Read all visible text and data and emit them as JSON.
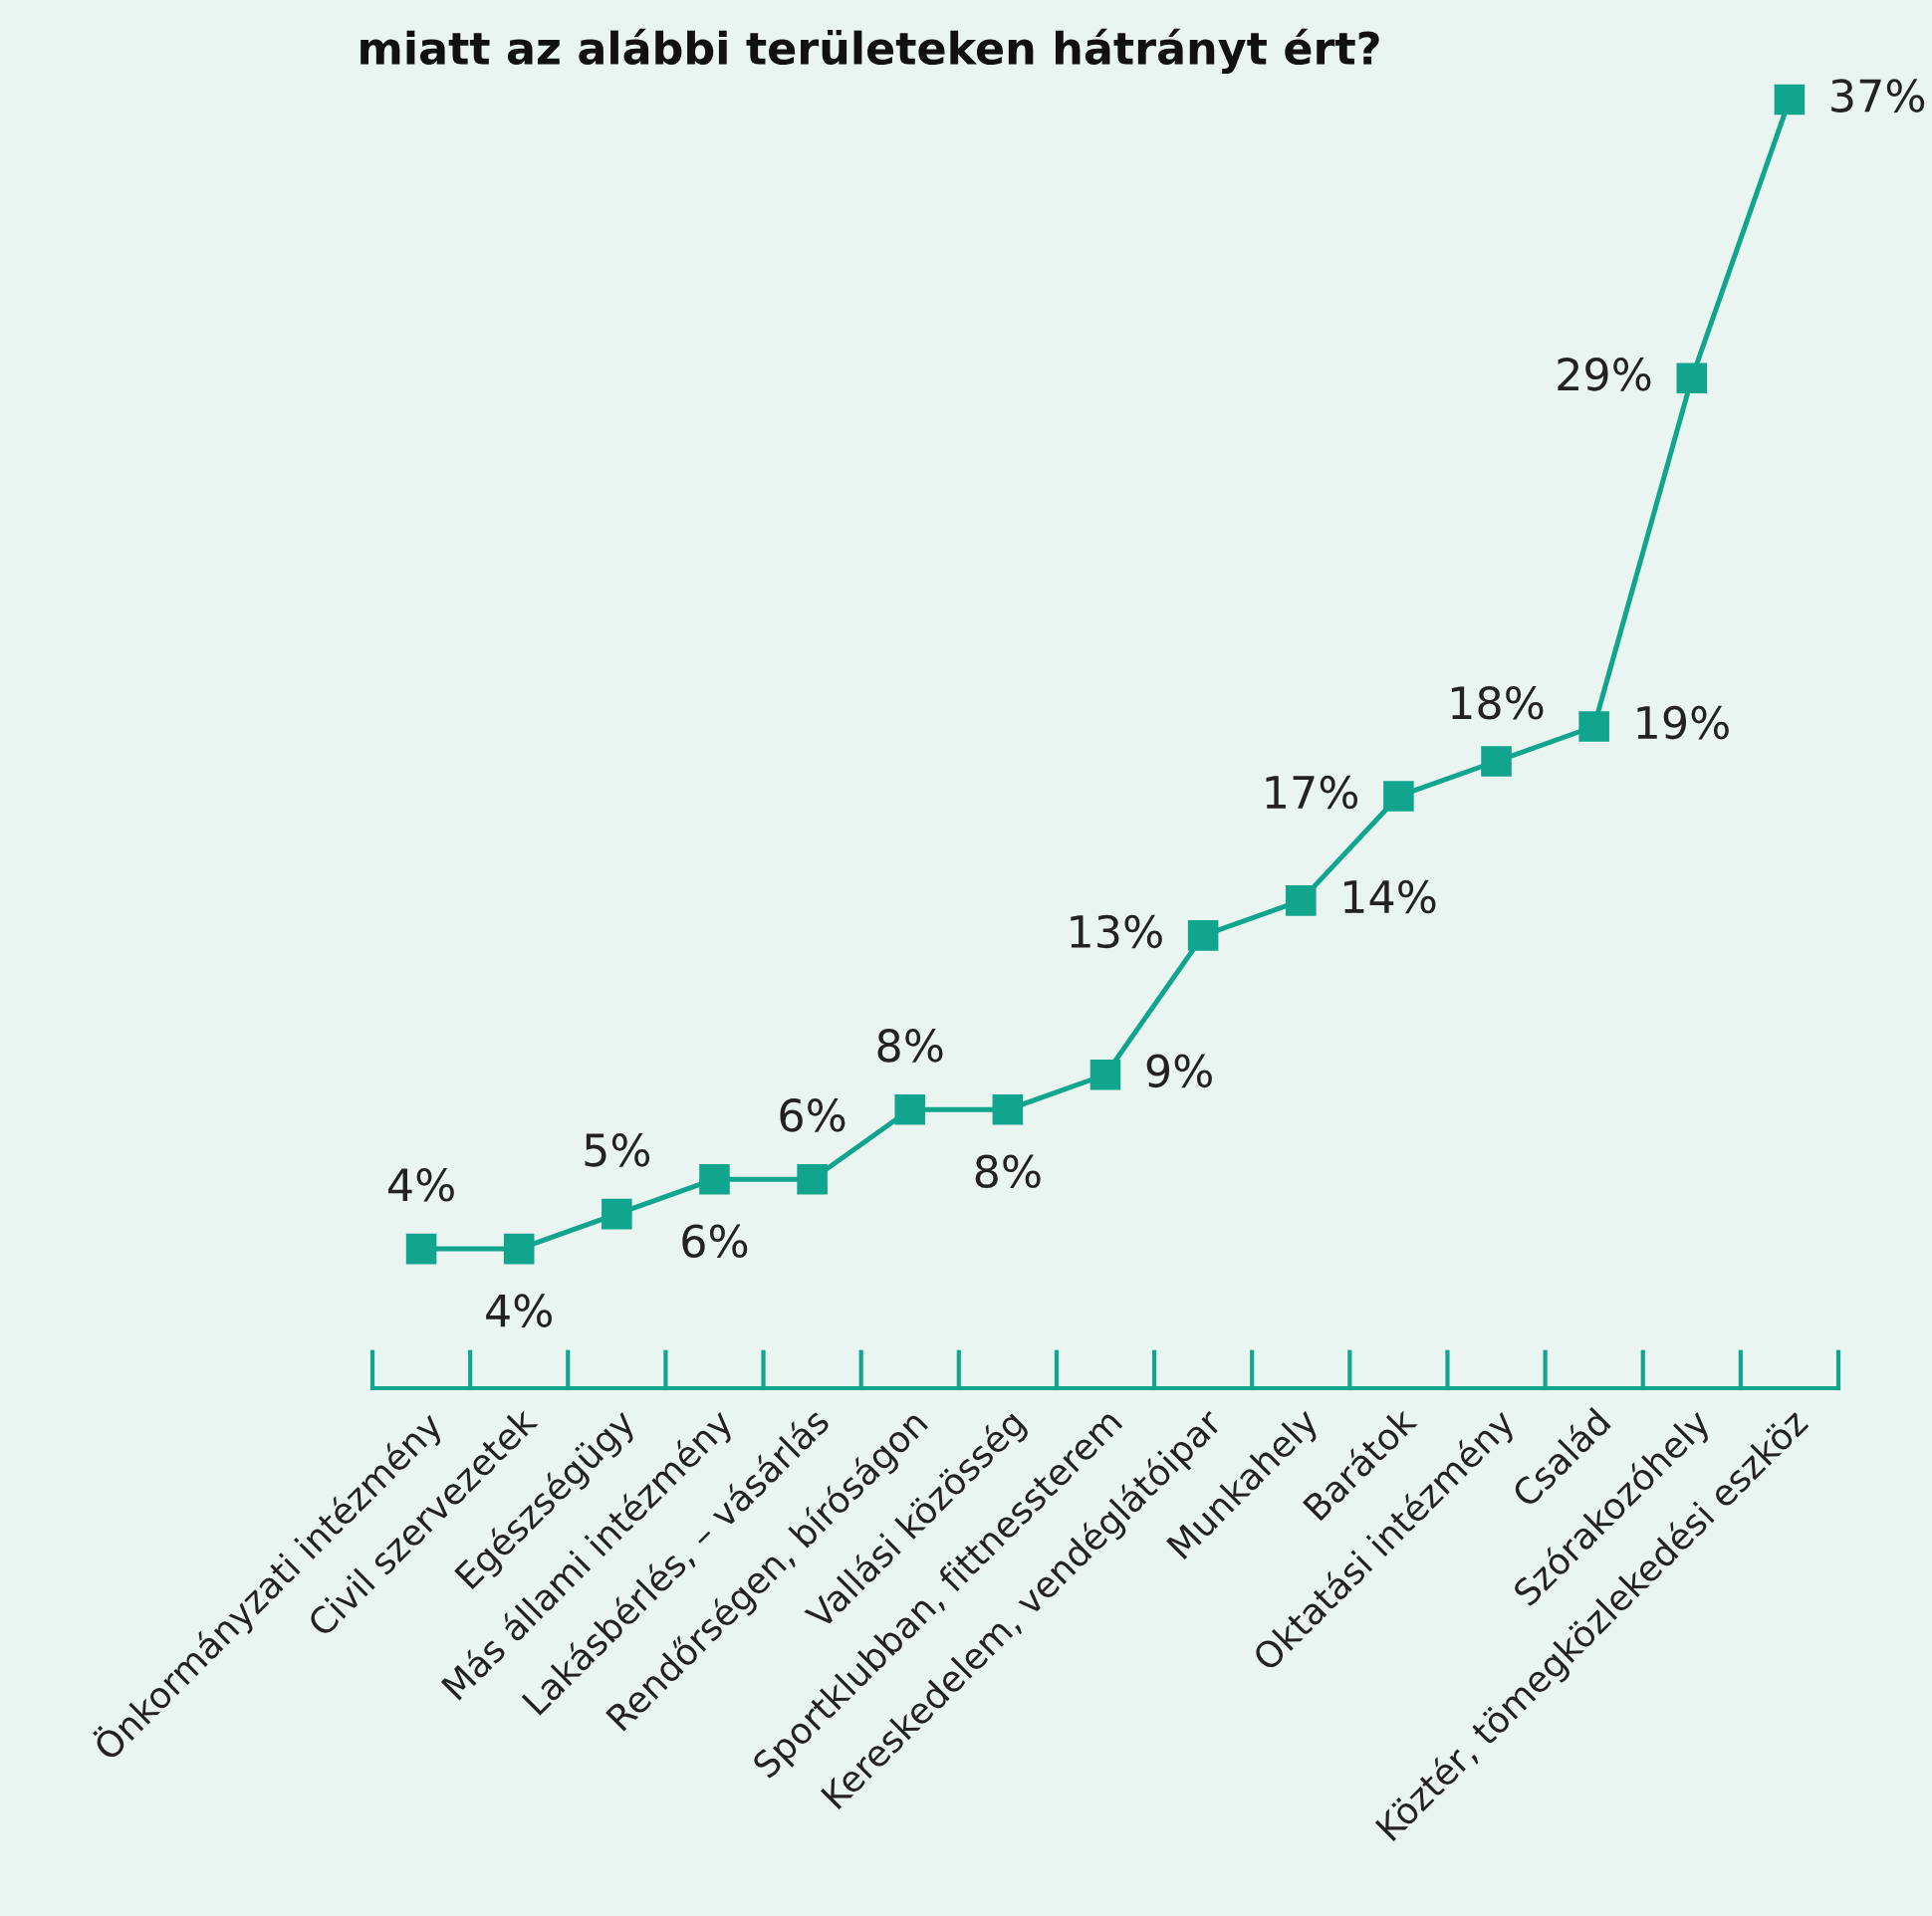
{
  "chart_data": {
    "type": "line",
    "title": "miatt az alábbi területeken hátrányt ért?",
    "categories": [
      "Önkormányzati intézmény",
      "Civil szervezetek",
      "Egészségügy",
      "Más állami intézmény",
      "Lakásbérlés, – vásárlás",
      "Rendőrségen, bíróságon",
      "Vallási közösség",
      "Sportklubban, fittnessterem",
      "Kereskedelem, vendéglátóipar",
      "Munkahely",
      "Barátok",
      "Oktatási intézmény",
      "Család",
      "Szórakozóhely",
      "Köztér, tömegközlekedési eszköz"
    ],
    "color": "#12a58e",
    "values": [
      4,
      4,
      5,
      6,
      6,
      8,
      8,
      9,
      13,
      14,
      17,
      18,
      19,
      29,
      37
    ],
    "value_labels": [
      "4%",
      "4%",
      "5%",
      "6%",
      "6%",
      "8%",
      "8%",
      "9%",
      "13%",
      "14%",
      "17%",
      "18%",
      "19%",
      "29%",
      "37%"
    ],
    "marker": "square",
    "grid": false,
    "tick_labels": "x"
  }
}
